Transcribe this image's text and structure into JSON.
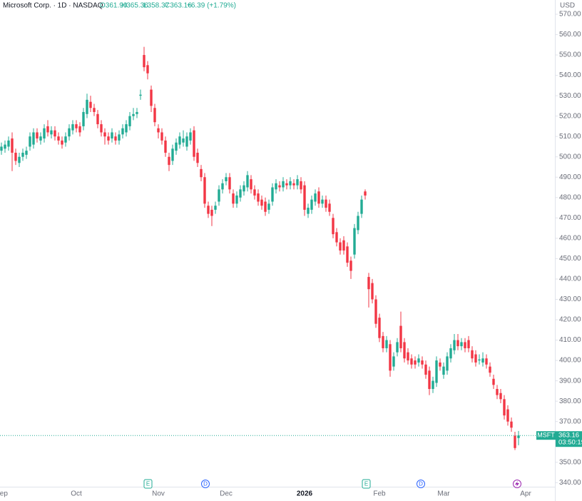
{
  "header": {
    "name": "Microsoft Corp. · 1D · NASDAQ",
    "open": "O361.90",
    "high": "H365.36",
    "low": "L358.37",
    "close": "C363.16",
    "change": "+6.39 (+1.79%)"
  },
  "price_tag": {
    "symbol": "MSFT",
    "countdown": "03:50:19"
  },
  "events": [
    "E",
    "D",
    "E",
    "D"
  ],
  "chart_data": {
    "type": "candlestick",
    "currency": "USD",
    "up_color": "#22ab94",
    "down_color": "#f23645",
    "ylim": [
      338,
      577
    ],
    "yticks": [
      {
        "value": 340,
        "label": "340.00"
      },
      {
        "value": 350,
        "label": "350.00"
      },
      {
        "value": 360,
        "label": "360.00"
      },
      {
        "value": 370,
        "label": "370.00"
      },
      {
        "value": 380,
        "label": "380.00"
      },
      {
        "value": 390,
        "label": "390.00"
      },
      {
        "value": 400,
        "label": "400.00"
      },
      {
        "value": 410,
        "label": "410.00"
      },
      {
        "value": 420,
        "label": "420.00"
      },
      {
        "value": 430,
        "label": "430.00"
      },
      {
        "value": 440,
        "label": "440.00"
      },
      {
        "value": 450,
        "label": "450.00"
      },
      {
        "value": 460,
        "label": "460.00"
      },
      {
        "value": 470,
        "label": "470.00"
      },
      {
        "value": 480,
        "label": "480.00"
      },
      {
        "value": 490,
        "label": "490.00"
      },
      {
        "value": 500,
        "label": "500.00"
      },
      {
        "value": 510,
        "label": "510.00"
      },
      {
        "value": 520,
        "label": "520.00"
      },
      {
        "value": 530,
        "label": "530.00"
      },
      {
        "value": 540,
        "label": "540.00"
      },
      {
        "value": 550,
        "label": "550.00"
      },
      {
        "value": 560,
        "label": "560.00"
      },
      {
        "value": 570,
        "label": "570.00"
      }
    ],
    "categories": [
      "Sep",
      null,
      null,
      null,
      null,
      null,
      null,
      null,
      null,
      null,
      null,
      null,
      null,
      null,
      null,
      null,
      null,
      null,
      null,
      null,
      null,
      "Oct",
      null,
      null,
      null,
      null,
      null,
      null,
      null,
      null,
      null,
      null,
      null,
      null,
      null,
      null,
      null,
      null,
      null,
      null,
      null,
      null,
      null,
      null,
      "Nov",
      null,
      null,
      null,
      null,
      null,
      null,
      null,
      null,
      null,
      null,
      null,
      null,
      null,
      null,
      null,
      null,
      null,
      null,
      "Dec",
      null,
      null,
      null,
      null,
      null,
      null,
      null,
      null,
      null,
      null,
      null,
      null,
      null,
      null,
      null,
      null,
      null,
      null,
      null,
      null,
      null,
      "2026",
      null,
      null,
      null,
      null,
      null,
      null,
      null,
      null,
      null,
      null,
      null,
      null,
      null,
      null,
      null,
      null,
      null,
      null,
      null,
      null,
      "Feb",
      null,
      null,
      null,
      null,
      null,
      null,
      null,
      null,
      null,
      null,
      null,
      null,
      null,
      null,
      null,
      null,
      null,
      "Mar",
      null,
      null,
      null,
      null,
      null,
      null,
      null,
      null,
      null,
      null,
      null,
      null,
      null,
      null,
      null,
      null,
      null,
      null,
      null,
      null,
      null,
      null,
      "Apr"
    ],
    "open": [
      503,
      504,
      505,
      509,
      502,
      497,
      500,
      501,
      505,
      506,
      512,
      508,
      509,
      515,
      511,
      513,
      510,
      508,
      507,
      510,
      513,
      516,
      515,
      515,
      521,
      527,
      524,
      521,
      516,
      512,
      510,
      509,
      510,
      508,
      511,
      512,
      515,
      520,
      521,
      530,
      550,
      545,
      533,
      524,
      514,
      512,
      508,
      500,
      498,
      503,
      506,
      507,
      505,
      508,
      513,
      502,
      494,
      490,
      476,
      474,
      474,
      478,
      484,
      488,
      490,
      482,
      477,
      480,
      483,
      485,
      489,
      484,
      482,
      479,
      478,
      474,
      478,
      484,
      486,
      485,
      487,
      486,
      487,
      486,
      488,
      486,
      472,
      474,
      478,
      483,
      477,
      479,
      477,
      470,
      463,
      458,
      459,
      456,
      449,
      452,
      464,
      472,
      483,
      441,
      438,
      430,
      421,
      412,
      406,
      408,
      397,
      404,
      417,
      409,
      404,
      401,
      400,
      399,
      400,
      398,
      395,
      386,
      389,
      399,
      393,
      395,
      401,
      405,
      410,
      407,
      409,
      410,
      405,
      403,
      400,
      399,
      401,
      397,
      391,
      386,
      384,
      381,
      376,
      370,
      363,
      361.9,
      null,
      null
    ],
    "high": [
      507,
      508,
      510,
      512,
      504,
      502,
      504,
      505,
      512,
      514,
      514,
      512,
      516,
      518,
      515,
      515,
      512,
      510,
      512,
      516,
      518,
      518,
      517,
      524,
      531,
      530,
      526,
      523,
      518,
      514,
      512,
      514,
      512,
      513,
      516,
      518,
      522,
      524,
      524,
      533,
      554,
      547,
      535,
      526,
      516,
      514,
      510,
      502,
      506,
      509,
      512,
      513,
      512,
      514,
      515,
      504,
      496,
      492,
      478,
      476,
      478,
      486,
      489,
      492,
      492,
      484,
      483,
      486,
      488,
      493,
      491,
      486,
      484,
      481,
      480,
      479,
      487,
      489,
      488,
      490,
      489,
      490,
      489,
      491,
      490,
      488,
      477,
      481,
      484,
      485,
      481,
      481,
      479,
      472,
      465,
      460,
      461,
      458,
      451,
      467,
      473,
      481,
      484,
      443,
      440,
      432,
      423,
      414,
      412,
      410,
      404,
      411,
      424,
      411,
      406,
      403,
      402,
      403,
      402,
      400,
      397,
      392,
      402,
      401,
      399,
      404,
      408,
      413,
      413,
      411,
      411,
      412,
      407,
      405,
      403,
      404,
      403,
      399,
      393,
      388,
      386,
      383,
      378,
      372,
      365,
      365.36,
      null,
      null
    ],
    "low": [
      501,
      502,
      503,
      493,
      496,
      495,
      498,
      499,
      503,
      504,
      507,
      506,
      507,
      510,
      509,
      508,
      506,
      504,
      505,
      508,
      511,
      512,
      510,
      513,
      519,
      522,
      520,
      514,
      510,
      506,
      506,
      507,
      506,
      506,
      509,
      510,
      513,
      518,
      519,
      528,
      542,
      538,
      522,
      515,
      509,
      506,
      500,
      493,
      496,
      501,
      504,
      505,
      503,
      506,
      498,
      495,
      488,
      475,
      470,
      466,
      472,
      476,
      482,
      486,
      482,
      475,
      475,
      478,
      481,
      483,
      482,
      479,
      476,
      474,
      471,
      472,
      476,
      482,
      483,
      483,
      484,
      484,
      484,
      484,
      482,
      471,
      470,
      472,
      476,
      475,
      475,
      473,
      471,
      460,
      456,
      452,
      452,
      446,
      440,
      450,
      462,
      470,
      479,
      426,
      428,
      416,
      409,
      404,
      404,
      392,
      395,
      402,
      404,
      399,
      398,
      396,
      396,
      397,
      396,
      391,
      383,
      384,
      387,
      395,
      391,
      393,
      399,
      403,
      405,
      405,
      404,
      404,
      399,
      397,
      398,
      397,
      396,
      392,
      386,
      381,
      379,
      371,
      368,
      365,
      356,
      358.37,
      null,
      null
    ],
    "close": [
      505,
      506,
      508,
      502,
      498,
      500,
      502,
      503,
      510,
      512,
      509,
      510,
      514,
      512,
      513,
      510,
      508,
      506,
      510,
      514,
      516,
      514,
      512,
      522,
      528,
      524,
      522,
      516,
      512,
      510,
      508,
      512,
      508,
      511,
      514,
      516,
      520,
      521,
      522,
      530.5,
      544,
      541,
      525,
      517,
      512,
      508,
      502,
      496,
      504,
      507,
      510,
      509,
      510,
      512,
      500,
      497,
      490,
      477,
      472,
      471,
      476,
      484,
      487,
      490,
      484,
      477,
      481,
      484,
      486,
      491,
      484,
      481,
      478,
      476,
      473,
      477,
      485,
      487,
      485,
      488,
      486,
      488,
      486,
      489,
      484,
      474,
      475,
      479,
      482,
      477,
      479,
      475,
      473,
      462,
      458,
      454,
      454,
      448,
      444,
      465,
      471,
      479,
      481,
      435,
      430,
      418,
      411,
      406,
      410,
      395,
      402,
      409,
      406,
      401,
      400,
      398,
      398,
      401,
      398,
      393,
      386,
      390,
      400,
      397,
      397,
      402,
      406,
      410,
      407,
      409,
      406,
      406,
      401,
      399,
      400.5,
      401,
      398,
      394,
      388,
      383,
      381,
      373,
      370,
      367,
      357,
      363.16,
      null,
      null
    ]
  }
}
